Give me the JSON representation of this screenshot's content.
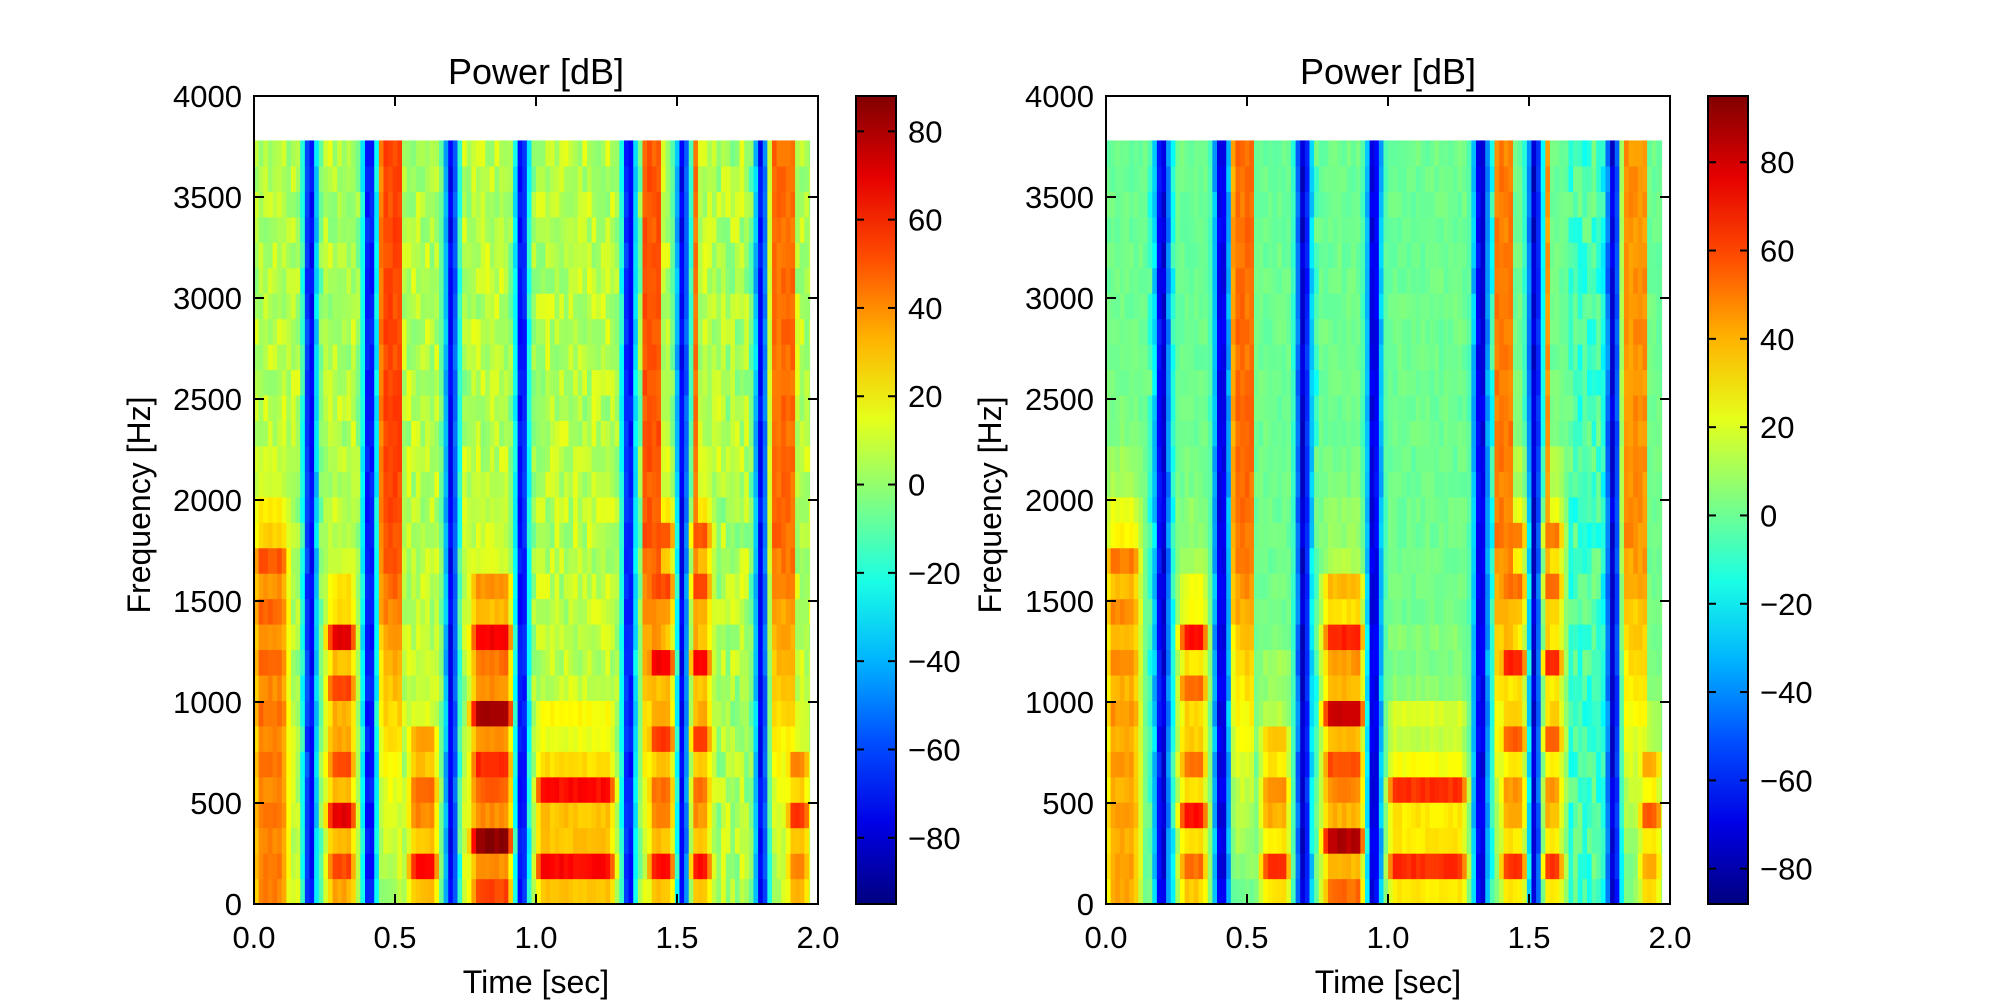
{
  "chart_data": [
    {
      "type": "heatmap",
      "title": "Power [dB]",
      "xlabel": "Time [sec]",
      "ylabel": "Frequency [Hz]",
      "xlim": [
        0.0,
        2.0
      ],
      "ylim": [
        0,
        4000
      ],
      "data_extent": {
        "time": [
          0.0,
          1.97
        ],
        "frequency": [
          0,
          3780
        ]
      },
      "x_ticks": [
        "0.0",
        "0.5",
        "1.0",
        "1.5",
        "2.0"
      ],
      "y_ticks": [
        "0",
        "500",
        "1000",
        "1500",
        "2000",
        "2500",
        "3000",
        "3500",
        "4000"
      ],
      "colorbar": {
        "range": [
          -95,
          88
        ],
        "ticks": [
          80,
          60,
          40,
          20,
          0,
          -20,
          -40,
          -60,
          -80
        ],
        "tick_labels": [
          "80",
          "60",
          "40",
          "20",
          "0",
          "−20",
          "−40",
          "−60",
          "−80"
        ],
        "colormap": "jet"
      },
      "noise_floor_db": 0
    },
    {
      "type": "heatmap",
      "title": "Power [dB]",
      "xlabel": "Time [sec]",
      "ylabel": "Frequency [Hz]",
      "xlim": [
        0.0,
        2.0
      ],
      "ylim": [
        0,
        4000
      ],
      "data_extent": {
        "time": [
          0.0,
          1.97
        ],
        "frequency": [
          0,
          3780
        ]
      },
      "x_ticks": [
        "0.0",
        "0.5",
        "1.0",
        "1.5",
        "2.0"
      ],
      "y_ticks": [
        "0",
        "500",
        "1000",
        "1500",
        "2000",
        "2500",
        "3000",
        "3500",
        "4000"
      ],
      "colorbar": {
        "range": [
          -88,
          95
        ],
        "ticks": [
          80,
          60,
          40,
          20,
          0,
          -20,
          -40,
          -60,
          -80
        ],
        "tick_labels": [
          "80",
          "60",
          "40",
          "20",
          "0",
          "−20",
          "−40",
          "−60",
          "−80"
        ],
        "colormap": "jet"
      },
      "noise_floor_db": -12
    }
  ],
  "spectrogram_features": {
    "time_step_sec": 0.0164,
    "freq_step_hz": 126,
    "silence_gaps_sec": [
      0.2,
      0.41,
      0.7,
      0.95,
      1.33,
      1.52,
      1.8
    ],
    "voiced_segments": [
      {
        "t": [
          0.0,
          0.12
        ],
        "f0_hz": 250,
        "energy_db": 80,
        "max_freq_hz": 1750
      },
      {
        "t": [
          0.26,
          0.36
        ],
        "f0_hz": 220,
        "energy_db": 70,
        "max_freq_hz": 1400
      },
      {
        "t": [
          0.55,
          0.65
        ],
        "f0_hz": 200,
        "energy_db": 68,
        "max_freq_hz": 700
      },
      {
        "t": [
          0.77,
          0.92
        ],
        "f0_hz": 320,
        "energy_db": 86,
        "max_freq_hz": 1400
      },
      {
        "t": [
          1.0,
          1.28
        ],
        "f0_hz": 190,
        "energy_db": 64,
        "max_freq_hz": 650
      },
      {
        "t": [
          1.4,
          1.62
        ],
        "f0_hz": 200,
        "energy_db": 66,
        "max_freq_hz": 1850
      },
      {
        "t": [
          1.89,
          1.97
        ],
        "f0_hz": 230,
        "energy_db": 62,
        "max_freq_hz": 600
      }
    ],
    "fricative_segments": [
      {
        "t": [
          0.45,
          0.52
        ],
        "energy_db": 52
      },
      {
        "t": [
          1.38,
          1.45
        ],
        "energy_db": 50
      },
      {
        "t": [
          1.55,
          1.58
        ],
        "energy_db": 45
      },
      {
        "t": [
          1.78,
          1.92
        ],
        "energy_db": 46
      }
    ]
  }
}
